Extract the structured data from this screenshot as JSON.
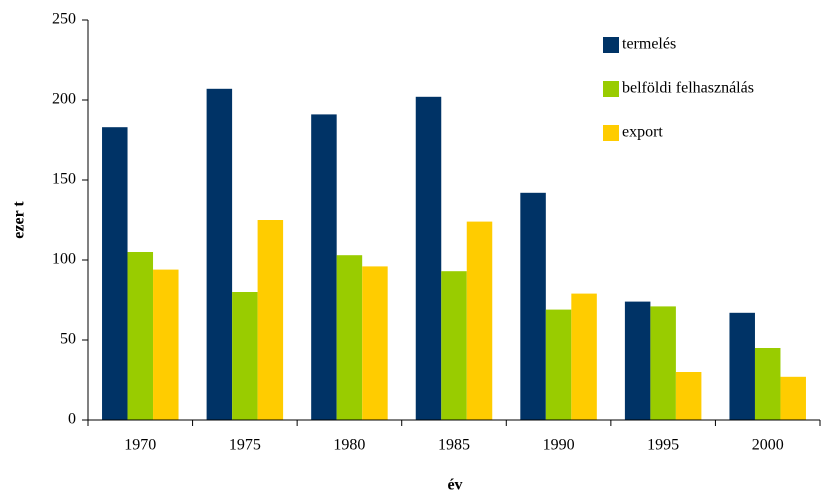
{
  "chart_data": {
    "type": "bar",
    "xlabel": "év",
    "ylabel": "ezer t",
    "categories": [
      "1970",
      "1975",
      "1980",
      "1985",
      "1990",
      "1995",
      "2000"
    ],
    "series": [
      {
        "name": "termelés",
        "color": "#003366",
        "values": [
          183,
          207,
          191,
          202,
          142,
          74,
          67
        ]
      },
      {
        "name": "belföldi felhasználás",
        "color": "#99cc00",
        "values": [
          105,
          80,
          103,
          93,
          69,
          71,
          45
        ]
      },
      {
        "name": "export",
        "color": "#ffcc00",
        "values": [
          94,
          125,
          96,
          124,
          79,
          30,
          27
        ]
      }
    ],
    "ylim": [
      0,
      250
    ],
    "yticks": [
      0,
      50,
      100,
      150,
      200,
      250
    ],
    "grid": false,
    "legend": "upper right"
  }
}
